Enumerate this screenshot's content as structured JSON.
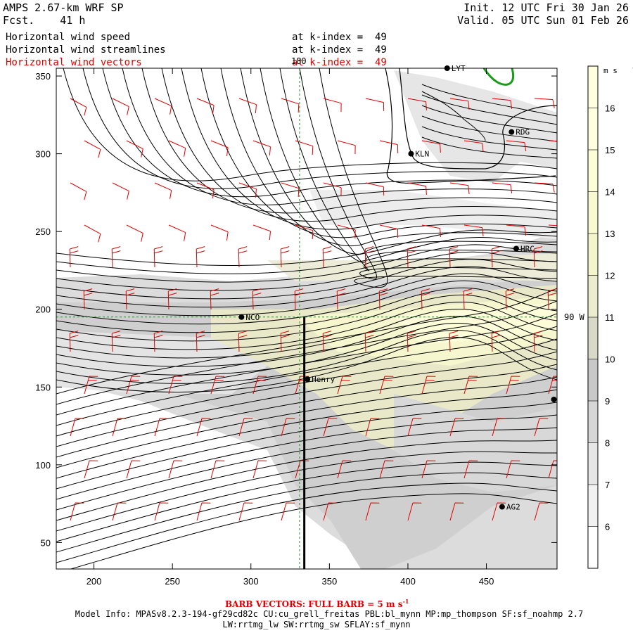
{
  "header": {
    "model": "AMPS 2.67-km WRF SP",
    "fcst": "Fcst.    41 h",
    "init": "Init. 12 UTC Fri 30 Jan 26",
    "valid": "Valid. 05 UTC Sun 01 Feb 26"
  },
  "fields": [
    {
      "label": "Horizontal wind speed",
      "level": "at k-index =  49",
      "color": "#000000"
    },
    {
      "label": "Horizontal wind streamlines",
      "level": "at k-index =  49",
      "color": "#000000"
    },
    {
      "label": "Horizontal wind vectors",
      "level": "at k-index =  49",
      "color": "#e00000"
    }
  ],
  "footer": {
    "barb_note": "BARB VECTORS:  FULL BARB = 5 m s",
    "barb_sup": "-1",
    "model_info": "Model Info: MPASv8.2.3-194-gf29cd82c CU:cu_grell_freitas PBL:bl_mynn MP:mp_thompson SF:sf_noahmp 2.7",
    "model_info2": "LW:rrtmg_lw SW:rrtmg_sw SFLAY:sf_mynn"
  },
  "chart_data": {
    "type": "heatmap",
    "xlim": [
      176,
      495
    ],
    "ylim": [
      33,
      355
    ],
    "xticks": [
      200,
      250,
      300,
      350,
      400,
      450
    ],
    "yticks": [
      50,
      100,
      150,
      200,
      250,
      300,
      350
    ],
    "colorbar": {
      "unit": "m s",
      "unit_sup": "-1",
      "levels": [
        6,
        7,
        8,
        9,
        10,
        11,
        12,
        13,
        14,
        15,
        16
      ],
      "colors": [
        "#ffffff",
        "#f2f2f2",
        "#e6e6e6",
        "#d6d6d6",
        "#c8c8c8",
        "#d9d9c8",
        "#ececcf",
        "#f5f5cc",
        "#fafad0",
        "#fdfdd8",
        "#ffffe0"
      ]
    },
    "reference_lines": [
      {
        "label": "180",
        "orientation": "vertical",
        "x": 331
      },
      {
        "label": "90 W",
        "orientation": "horizontal",
        "y": 195
      }
    ],
    "cross_section": [
      [
        334,
        195
      ],
      [
        334,
        33
      ]
    ],
    "stations": [
      {
        "name": "NCO",
        "x": 294,
        "y": 195
      },
      {
        "name": "Henry",
        "x": 336,
        "y": 155
      },
      {
        "name": "KLN",
        "x": 402,
        "y": 300
      },
      {
        "name": "RDG",
        "x": 466,
        "y": 314
      },
      {
        "name": "HRC",
        "x": 469,
        "y": 239
      },
      {
        "name": "LYT",
        "x": 425,
        "y": 355
      },
      {
        "name": "AG2",
        "x": 460,
        "y": 73
      },
      {
        "name": "",
        "x": 493,
        "y": 142
      }
    ]
  }
}
